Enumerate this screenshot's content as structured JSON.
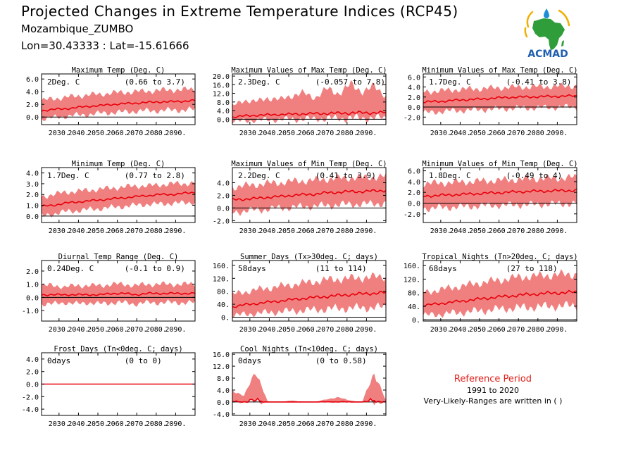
{
  "header": {
    "title": "Projected Changes in Extreme Temperature Indices (RCP45)",
    "location": "Mozambique_ZUMBO",
    "coordinates": "Lon=30.43333 : Lat=-15.61666"
  },
  "logo": {
    "text": "ACMAD",
    "icon": "africa-map-logo"
  },
  "reference": {
    "title": "Reference Period",
    "years": "1991 to 2020",
    "note": "Very-Likely-Ranges are written in ( )"
  },
  "colors": {
    "band": "#f08080",
    "line": "#e8000b",
    "zero": "#000000"
  },
  "chart_data": [
    {
      "type": "area",
      "title": "Maximum Temp (Deg. C)",
      "change": "2Deg. C",
      "range": "(0.66 to 3.7)",
      "xticks": [
        "2030.",
        "2040.",
        "2050.",
        "2060.",
        "2070.",
        "2080.",
        "2090."
      ],
      "yticks": [
        "6.0",
        "4.0",
        "2.0",
        "0.0"
      ],
      "ylim": [
        -1.2,
        6.8
      ],
      "x_range": [
        2021,
        2100
      ],
      "series": [
        {
          "values": [
            1.0,
            1.2,
            1.3,
            1.5,
            1.7,
            1.8,
            2.0,
            2.1,
            2.2,
            2.3,
            2.4,
            2.4,
            2.5,
            2.6
          ]
        },
        {
          "values": [
            -0.3,
            -0.1,
            0.1,
            0.3,
            0.4,
            0.6,
            0.7,
            0.8,
            0.9,
            1.0,
            1.0,
            1.1,
            1.1,
            1.2
          ]
        },
        {
          "values": [
            2.6,
            2.9,
            3.1,
            3.3,
            3.5,
            3.6,
            3.8,
            3.9,
            4.0,
            4.1,
            4.2,
            4.3,
            4.3,
            4.4
          ]
        }
      ]
    },
    {
      "type": "area",
      "title": "Maximum Values of Max Temp (Deg. C)",
      "change": "2.3Deg. C",
      "range": "(-0.057 to 7.8)",
      "xticks": [
        "2030.",
        "2040.",
        "2050.",
        "2060.",
        "2070.",
        "2080.",
        "2090."
      ],
      "yticks": [
        "20.0",
        "16.0",
        "12.0",
        "8.0",
        "4.0",
        "0.0"
      ],
      "ylim": [
        -2.5,
        21
      ],
      "x_range": [
        2021,
        2100
      ],
      "series": [
        {
          "values": [
            1.0,
            1.5,
            1.8,
            2.0,
            2.2,
            2.3,
            2.5,
            2.6,
            2.7,
            2.8,
            2.9,
            3.0,
            3.0,
            3.1
          ]
        },
        {
          "values": [
            -1.0,
            -0.8,
            -0.5,
            -0.3,
            -0.2,
            0.0,
            0.1,
            0.2,
            0.3,
            0.4,
            0.5,
            0.5,
            0.6,
            0.6
          ]
        },
        {
          "values": [
            6.0,
            9.0,
            8.0,
            10.0,
            9.0,
            11.0,
            12.0,
            10.0,
            14.0,
            12.0,
            16.0,
            13.0,
            15.0,
            11.0
          ]
        }
      ]
    },
    {
      "type": "area",
      "title": "Minimum Values of Max Temp (Deg. C)",
      "change": "1.7Deg. C",
      "range": "(-0.41 to 3.8)",
      "xticks": [
        "2030.",
        "2040.",
        "2050.",
        "2060.",
        "2070.",
        "2080.",
        "2090."
      ],
      "yticks": [
        "6.0",
        "4.0",
        "2.0",
        "0.0",
        "-2.0"
      ],
      "ylim": [
        -3.5,
        6.6
      ],
      "x_range": [
        2021,
        2100
      ],
      "series": [
        {
          "values": [
            1.0,
            1.1,
            1.2,
            1.4,
            1.5,
            1.6,
            1.8,
            1.9,
            2.0,
            2.0,
            2.1,
            2.1,
            2.2,
            2.2
          ]
        },
        {
          "values": [
            -1.2,
            -1.0,
            -0.8,
            -0.7,
            -0.6,
            -0.5,
            -0.4,
            -0.3,
            -0.2,
            -0.2,
            -0.1,
            -0.1,
            0.0,
            0.0
          ]
        },
        {
          "values": [
            3.0,
            3.2,
            3.3,
            3.5,
            3.6,
            3.7,
            3.8,
            3.9,
            4.0,
            4.0,
            4.1,
            4.1,
            4.2,
            4.2
          ]
        }
      ]
    },
    {
      "type": "area",
      "title": "Minimum Temp (Deg. C)",
      "change": "1.7Deg. C",
      "range": "(0.77 to 2.8)",
      "xticks": [
        "2030.",
        "2040.",
        "2050.",
        "2060.",
        "2070.",
        "2080.",
        "2090."
      ],
      "yticks": [
        "4.0",
        "3.0",
        "2.0",
        "1.0",
        "0.0"
      ],
      "ylim": [
        -0.6,
        4.5
      ],
      "x_range": [
        2021,
        2100
      ],
      "series": [
        {
          "values": [
            0.9,
            1.0,
            1.2,
            1.3,
            1.4,
            1.5,
            1.6,
            1.7,
            1.8,
            1.9,
            2.0,
            2.0,
            2.1,
            2.2
          ]
        },
        {
          "values": [
            0.0,
            0.2,
            0.4,
            0.5,
            0.6,
            0.7,
            0.8,
            0.9,
            1.0,
            1.1,
            1.1,
            1.2,
            1.2,
            1.3
          ]
        },
        {
          "values": [
            1.8,
            2.0,
            2.2,
            2.3,
            2.4,
            2.5,
            2.6,
            2.7,
            2.8,
            2.8,
            2.9,
            3.0,
            3.0,
            3.1
          ]
        }
      ]
    },
    {
      "type": "area",
      "title": "Maximum Values of Min Temp (Deg. C)",
      "change": "2.2Deg. C",
      "range": "(0.41 to 3.9)",
      "xticks": [
        "2030.",
        "2040.",
        "2050.",
        "2060.",
        "2070.",
        "2080.",
        "2090."
      ],
      "yticks": [
        "4.0",
        "2.0",
        "0.0",
        "-2.0"
      ],
      "ylim": [
        -2.3,
        6.4
      ],
      "x_range": [
        2021,
        2100
      ],
      "series": [
        {
          "values": [
            1.3,
            1.4,
            1.5,
            1.7,
            1.8,
            2.0,
            2.1,
            2.2,
            2.4,
            2.5,
            2.6,
            2.6,
            2.7,
            2.8
          ]
        },
        {
          "values": [
            -0.7,
            -0.5,
            -0.3,
            -0.2,
            0.0,
            0.1,
            0.2,
            0.3,
            0.4,
            0.5,
            0.6,
            0.6,
            0.7,
            0.7
          ]
        },
        {
          "values": [
            3.3,
            3.5,
            3.7,
            3.9,
            4.0,
            4.2,
            4.3,
            4.4,
            4.6,
            4.7,
            4.8,
            4.8,
            4.9,
            5.0
          ]
        }
      ]
    },
    {
      "type": "area",
      "title": "Minimum Values of Min Temp (Deg. C)",
      "change": "1.8Deg. C",
      "range": "(-0.49 to 4)",
      "xticks": [
        "2030.",
        "2040.",
        "2050.",
        "2060.",
        "2070.",
        "2080.",
        "2090."
      ],
      "yticks": [
        "6.0",
        "4.0",
        "2.0",
        "0.0",
        "-2.0"
      ],
      "ylim": [
        -3.6,
        6.6
      ],
      "x_range": [
        2021,
        2100
      ],
      "series": [
        {
          "values": [
            1.3,
            1.4,
            1.5,
            1.6,
            1.7,
            1.8,
            1.9,
            2.0,
            2.1,
            2.2,
            2.2,
            2.3,
            2.3,
            2.4
          ]
        },
        {
          "values": [
            -1.0,
            -0.9,
            -0.8,
            -0.7,
            -0.6,
            -0.5,
            -0.4,
            -0.4,
            -0.3,
            -0.3,
            -0.2,
            -0.2,
            -0.1,
            -0.1
          ]
        },
        {
          "values": [
            3.6,
            3.7,
            3.8,
            3.9,
            4.0,
            4.1,
            4.2,
            4.3,
            4.4,
            4.5,
            4.6,
            4.6,
            4.7,
            4.8
          ]
        }
      ]
    },
    {
      "type": "area",
      "title": "Diurnal Temp Range (Deg. C)",
      "change": "0.24Deg. C",
      "range": "(-0.1 to 0.9)",
      "xticks": [
        "2030.",
        "2040.",
        "2050.",
        "2060.",
        "2070.",
        "2080.",
        "2090."
      ],
      "yticks": [
        "2.0",
        "1.0",
        "0.0",
        "-1.0"
      ],
      "ylim": [
        -1.8,
        2.8
      ],
      "x_range": [
        2021,
        2100
      ],
      "series": [
        {
          "values": [
            0.2,
            0.2,
            0.2,
            0.2,
            0.2,
            0.2,
            0.3,
            0.3,
            0.2,
            0.3,
            0.3,
            0.3,
            0.3,
            0.3
          ]
        },
        {
          "values": [
            -0.5,
            -0.5,
            -0.4,
            -0.5,
            -0.4,
            -0.5,
            -0.4,
            -0.4,
            -0.5,
            -0.4,
            -0.4,
            -0.4,
            -0.4,
            -0.4
          ]
        },
        {
          "values": [
            0.9,
            0.9,
            0.8,
            0.9,
            0.9,
            0.9,
            1.0,
            1.0,
            0.9,
            1.0,
            1.0,
            1.0,
            1.0,
            1.0
          ]
        }
      ]
    },
    {
      "type": "area",
      "title": "Summer Days (Tx>30deg. C; days)",
      "change": "58days",
      "range": "(11 to 114)",
      "xticks": [
        "2030.",
        "2040.",
        "2050.",
        "2060.",
        "2070.",
        "2080.",
        "2090."
      ],
      "yticks": [
        "160.",
        "120.",
        "80.",
        "40.",
        "0."
      ],
      "ylim": [
        -12,
        175
      ],
      "x_range": [
        2021,
        2100
      ],
      "series": [
        {
          "values": [
            32,
            38,
            42,
            46,
            50,
            54,
            58,
            61,
            64,
            67,
            70,
            72,
            74,
            76
          ]
        },
        {
          "values": [
            5,
            8,
            12,
            14,
            17,
            19,
            21,
            23,
            25,
            27,
            28,
            29,
            30,
            31
          ]
        },
        {
          "values": [
            70,
            78,
            84,
            90,
            95,
            100,
            105,
            110,
            115,
            118,
            120,
            122,
            124,
            126
          ]
        }
      ]
    },
    {
      "type": "area",
      "title": "Tropical Nights (Tn>20deg. C; days)",
      "change": "68days",
      "range": "(27 to 118)",
      "xticks": [
        "2030.",
        "2040.",
        "2050.",
        "2060.",
        "2070.",
        "2080.",
        "2090."
      ],
      "yticks": [
        "160.",
        "120.",
        "80.",
        "40.",
        "0."
      ],
      "ylim": [
        -4,
        175
      ],
      "x_range": [
        2021,
        2100
      ],
      "series": [
        {
          "values": [
            42,
            46,
            50,
            54,
            58,
            62,
            66,
            69,
            72,
            75,
            77,
            79,
            80,
            82
          ]
        },
        {
          "values": [
            12,
            15,
            18,
            21,
            24,
            27,
            30,
            33,
            35,
            37,
            39,
            40,
            41,
            42
          ]
        },
        {
          "values": [
            80,
            86,
            92,
            98,
            104,
            110,
            115,
            120,
            125,
            128,
            130,
            132,
            134,
            135
          ]
        }
      ]
    },
    {
      "type": "area",
      "title": "Frost Days (Tn<0deg. C; days)",
      "change": "0days",
      "range": "(0 to 0)",
      "xticks": [
        "2030.",
        "2040.",
        "2050.",
        "2060.",
        "2070.",
        "2080.",
        "2090."
      ],
      "yticks": [
        "4.0",
        "2.0",
        "0.0",
        "-2.0",
        "-4.0"
      ],
      "ylim": [
        -5,
        5
      ],
      "x_range": [
        2021,
        2100
      ],
      "series": [
        {
          "values": [
            0,
            0,
            0,
            0,
            0,
            0,
            0,
            0,
            0,
            0,
            0,
            0,
            0,
            0
          ]
        },
        {
          "values": [
            0,
            0,
            0,
            0,
            0,
            0,
            0,
            0,
            0,
            0,
            0,
            0,
            0,
            0
          ]
        },
        {
          "values": [
            0,
            0,
            0,
            0,
            0,
            0,
            0,
            0,
            0,
            0,
            0,
            0,
            0,
            0
          ]
        }
      ]
    },
    {
      "type": "area",
      "title": "Cool Nights (Tn<10deg. C; days)",
      "change": "0days",
      "range": "(0 to 0.58)",
      "xticks": [
        "2030.",
        "2040.",
        "2050.",
        "2060.",
        "2070.",
        "2080.",
        "2090."
      ],
      "yticks": [
        "16.0",
        "12.0",
        "8.0",
        "4.0",
        "0.0",
        "-4.0"
      ],
      "ylim": [
        -4.5,
        16.5
      ],
      "x_range": [
        2021,
        2100
      ],
      "series": [
        {
          "values": [
            0,
            0,
            0,
            0,
            0,
            0,
            0,
            0,
            0,
            0,
            0,
            0,
            0,
            0
          ]
        },
        {
          "values": [
            0,
            0,
            0,
            0,
            0,
            0,
            0,
            0,
            0,
            0,
            0,
            0,
            0,
            0
          ]
        },
        {
          "values": [
            4,
            2,
            10.5,
            0,
            0,
            0.5,
            0,
            0,
            1,
            1.5,
            0.5,
            0,
            10,
            0.5
          ]
        }
      ]
    }
  ]
}
